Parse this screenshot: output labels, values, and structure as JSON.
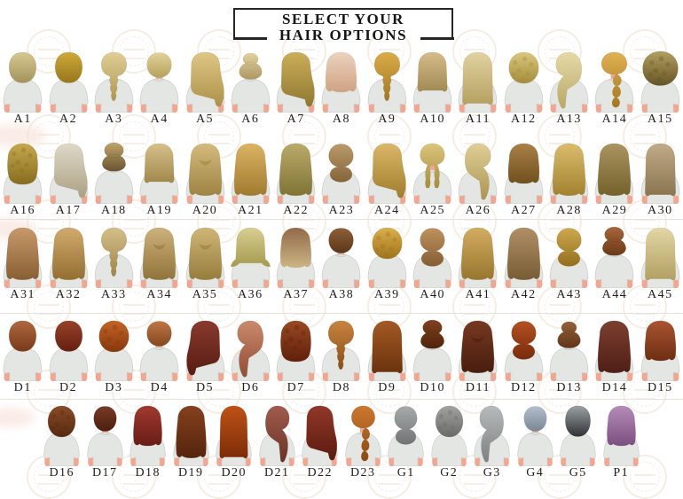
{
  "title": {
    "line1": "SELECT YOUR",
    "line2": "HAIR OPTIONS"
  },
  "colors": {
    "skin": "#f3a58f",
    "shirt": "#e4e6e3",
    "shirt_shadow": "#c9ccc8",
    "label_text": "#1f1f1f",
    "title_border": "#262626",
    "watermark": "#eadfcb"
  },
  "rows": [
    {
      "name": "blonde-row-1",
      "items": [
        {
          "label": "A1",
          "style": "bob",
          "c1": "#d7c893",
          "c2": "#a3925a"
        },
        {
          "label": "A2",
          "style": "bob",
          "c1": "#cfa93a",
          "c2": "#97761c"
        },
        {
          "label": "A3",
          "style": "braid",
          "c1": "#dfce96",
          "c2": "#ad9753"
        },
        {
          "label": "A4",
          "style": "short",
          "c1": "#e2d29a",
          "c2": "#b7a25d"
        },
        {
          "label": "A5",
          "style": "long_side",
          "c1": "#dec686",
          "c2": "#ac9147"
        },
        {
          "label": "A6",
          "style": "bun_top",
          "c1": "#e0d1a1",
          "c2": "#ae9760"
        },
        {
          "label": "A7",
          "style": "long_side",
          "c1": "#ccae58",
          "c2": "#8f7832"
        },
        {
          "label": "A8",
          "style": "medium_wavy",
          "c1": "#ecd2bd",
          "c2": "#cfa284"
        },
        {
          "label": "A9",
          "style": "braid",
          "c1": "#dbac48",
          "c2": "#a1761f"
        },
        {
          "label": "A10",
          "style": "medium",
          "c1": "#d5bc8a",
          "c2": "#a18a54"
        },
        {
          "label": "A11",
          "style": "long",
          "c1": "#e1d2a0",
          "c2": "#b5a061"
        },
        {
          "label": "A12",
          "style": "curly_short",
          "c1": "#dbc77d",
          "c2": "#a38d3b"
        },
        {
          "label": "A13",
          "style": "pony_low",
          "flip": true,
          "c1": "#e5daa7",
          "c2": "#b9a866"
        },
        {
          "label": "A14",
          "style": "pony_bubble",
          "c1": "#dfb152",
          "c2": "#a4771f"
        },
        {
          "label": "A15",
          "style": "afro",
          "c1": "#b29f60",
          "c2": "#665525"
        }
      ]
    },
    {
      "name": "blonde-row-2",
      "items": [
        {
          "label": "A16",
          "style": "curly_med",
          "c1": "#c6a84d",
          "c2": "#866c20"
        },
        {
          "label": "A17",
          "style": "long_side",
          "c1": "#dfd8c8",
          "c2": "#aba183"
        },
        {
          "label": "A18",
          "style": "bun_messy",
          "c1": "#bfa367",
          "c2": "#6a5433"
        },
        {
          "label": "A19",
          "style": "medium",
          "c1": "#d6bf89",
          "c2": "#a0884c"
        },
        {
          "label": "A20",
          "style": "half_up",
          "c1": "#d4bb7c",
          "c2": "#9d8445"
        },
        {
          "label": "A21",
          "style": "long_wavy",
          "c1": "#dcb363",
          "c2": "#a07a30"
        },
        {
          "label": "A22",
          "style": "long_wavy",
          "c1": "#bbaa69",
          "c2": "#7f7436"
        },
        {
          "label": "A23",
          "style": "bun_low",
          "c1": "#ba996a",
          "c2": "#84653a"
        },
        {
          "label": "A24",
          "style": "long_side",
          "c1": "#dbb669",
          "c2": "#a07e2c"
        },
        {
          "label": "A25",
          "style": "braids2",
          "c1": "#dbc57b",
          "c2": "#a58d3c"
        },
        {
          "label": "A26",
          "style": "pony_low",
          "c1": "#dfce96",
          "c2": "#ab9552"
        },
        {
          "label": "A27",
          "style": "medium_wavy",
          "c1": "#a98047",
          "c2": "#70501d"
        },
        {
          "label": "A28",
          "style": "long_wavy",
          "c1": "#dbbc6d",
          "c2": "#a28230"
        },
        {
          "label": "A29",
          "style": "long_wavy",
          "c1": "#aa945f",
          "c2": "#74612c"
        },
        {
          "label": "A30",
          "style": "long",
          "c1": "#c1aa87",
          "c2": "#8a7551"
        }
      ]
    },
    {
      "name": "blonde-row-3",
      "items": [
        {
          "label": "A31",
          "style": "long_wavy",
          "c1": "#c7996a",
          "c2": "#885f33"
        },
        {
          "label": "A32",
          "style": "long_wavy",
          "c1": "#d1aa6d",
          "c2": "#946f32"
        },
        {
          "label": "A33",
          "style": "braid",
          "c1": "#d4bf89",
          "c2": "#9d854a"
        },
        {
          "label": "A34",
          "style": "half_up",
          "c1": "#ccb17b",
          "c2": "#91743a"
        },
        {
          "label": "A35",
          "style": "half_up",
          "c1": "#cfb576",
          "c2": "#967c3d"
        },
        {
          "label": "A36",
          "style": "flip",
          "c1": "#d8ce91",
          "c2": "#a49a4f"
        },
        {
          "label": "A37",
          "style": "medium_wavy",
          "c1": "#92694a",
          "c2": "#cbb583"
        },
        {
          "label": "A38",
          "style": "short",
          "c1": "#8e6037",
          "c2": "#59371a"
        },
        {
          "label": "A39",
          "style": "curly_short",
          "c1": "#dbaf4b",
          "c2": "#9f731b"
        },
        {
          "label": "A40",
          "style": "bun_low",
          "c1": "#bf925f",
          "c2": "#845d31"
        },
        {
          "label": "A41",
          "style": "long_wavy",
          "c1": "#d3ac61",
          "c2": "#98762e"
        },
        {
          "label": "A42",
          "style": "long_wavy",
          "c1": "#b18f66",
          "c2": "#785c35"
        },
        {
          "label": "A43",
          "style": "bun_low",
          "c1": "#cea84d",
          "c2": "#926f1e"
        },
        {
          "label": "A44",
          "style": "bun_messy",
          "c1": "#a8653a",
          "c2": "#6a3a16"
        },
        {
          "label": "A45",
          "style": "long",
          "c1": "#e3d6a5",
          "c2": "#b1a062"
        }
      ]
    },
    {
      "name": "red-row-1",
      "items": [
        {
          "label": "D1",
          "style": "bob",
          "c1": "#af693f",
          "c2": "#79391a"
        },
        {
          "label": "D2",
          "style": "bob",
          "c1": "#98412a",
          "c2": "#651f0e"
        },
        {
          "label": "D3",
          "style": "curly_short",
          "c1": "#c46424",
          "c2": "#87380d"
        },
        {
          "label": "D4",
          "style": "short",
          "c1": "#bf7744",
          "c2": "#84471e"
        },
        {
          "label": "D5",
          "style": "long_side",
          "flip": true,
          "c1": "#893a2d",
          "c2": "#571c12"
        },
        {
          "label": "D6",
          "style": "pony_low",
          "flip": true,
          "c1": "#cb896b",
          "c2": "#8f4e37"
        },
        {
          "label": "D7",
          "style": "curly_med",
          "c1": "#994921",
          "c2": "#601f0c"
        },
        {
          "label": "D8",
          "style": "braid",
          "c1": "#c88340",
          "c2": "#895016"
        },
        {
          "label": "D9",
          "style": "long",
          "c1": "#a55923",
          "c2": "#6a330e"
        },
        {
          "label": "D10",
          "style": "bun_messy",
          "c1": "#82411e",
          "c2": "#51230c"
        },
        {
          "label": "D11",
          "style": "half_up",
          "c1": "#763921",
          "c2": "#491d0e"
        },
        {
          "label": "D12",
          "style": "bun_low",
          "c1": "#b45021",
          "c2": "#782c0c"
        },
        {
          "label": "D13",
          "style": "bun_top",
          "c1": "#956039",
          "c2": "#5f3618"
        },
        {
          "label": "D14",
          "style": "long_wavy",
          "c1": "#7d3f2f",
          "c2": "#4e1f16"
        },
        {
          "label": "D15",
          "style": "medium_wavy",
          "c1": "#a95430",
          "c2": "#6e2e12"
        }
      ]
    },
    {
      "name": "red-gray-purple-row",
      "items": [
        {
          "label": "D16",
          "style": "curly_short",
          "c1": "#894b28",
          "c2": "#572a10"
        },
        {
          "label": "D17",
          "style": "short",
          "c1": "#793a25",
          "c2": "#4c1e10"
        },
        {
          "label": "D18",
          "style": "medium_wavy",
          "c1": "#a0392f",
          "c2": "#681d16"
        },
        {
          "label": "D19",
          "style": "long_wavy",
          "c1": "#85411e",
          "c2": "#54240d"
        },
        {
          "label": "D20",
          "style": "long",
          "c1": "#be5217",
          "c2": "#7d2c07"
        },
        {
          "label": "D21",
          "style": "pony_low",
          "c1": "#a15b4d",
          "c2": "#693327"
        },
        {
          "label": "D22",
          "style": "long_side",
          "c1": "#913729",
          "c2": "#5b1b10"
        },
        {
          "label": "D23",
          "style": "pony_bubble",
          "c1": "#cc782f",
          "c2": "#8c4910"
        },
        {
          "label": "G1",
          "style": "bun_low",
          "c1": "#a7aaab",
          "c2": "#717475"
        },
        {
          "label": "G2",
          "style": "curly_short",
          "c1": "#a2a2a0",
          "c2": "#6a6a68"
        },
        {
          "label": "G3",
          "style": "pony_low",
          "flip": true,
          "c1": "#b7babb",
          "c2": "#7e8182"
        },
        {
          "label": "G4",
          "style": "short",
          "c1": "#b2becb",
          "c2": "#7a8694"
        },
        {
          "label": "G5",
          "style": "bob",
          "c1": "#9aa0a3",
          "c2": "#303336"
        },
        {
          "label": "P1",
          "style": "medium_wavy",
          "c1": "#b58cb8",
          "c2": "#7b4f80"
        }
      ]
    }
  ]
}
